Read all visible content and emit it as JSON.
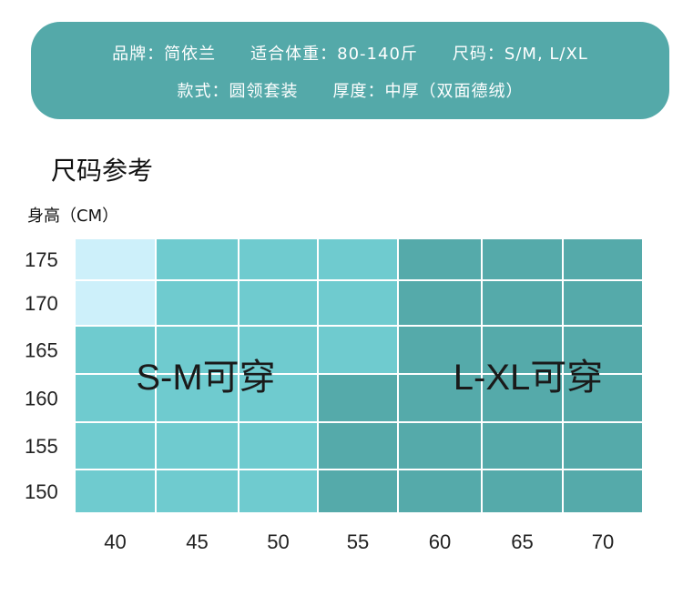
{
  "banner": {
    "brand": "品牌：简依兰",
    "fit_weight": "适合体重：80-140斤",
    "sizes": "尺码：S/M, L/XL",
    "style": "款式：圆领套装",
    "thickness": "厚度：中厚（双面德绒）"
  },
  "section_title": "尺码参考",
  "colors": {
    "banner": "#54a9a9",
    "light": "#cdf0fa",
    "sm": "#6fcbcf",
    "lxl": "#55aaaa",
    "gridline": "#ffffff"
  },
  "chart_data": {
    "type": "heatmap",
    "ylabel": "身高（CM）",
    "xlabel": "",
    "x": [
      "40",
      "45",
      "50",
      "55",
      "60",
      "65",
      "70"
    ],
    "y": [
      "175",
      "170",
      "165",
      "160",
      "155",
      "150"
    ],
    "zones": {
      "light": "",
      "sm": "S-M可穿",
      "lxl": "L-XL可穿"
    },
    "cells": [
      [
        "light",
        "sm",
        "sm",
        "sm",
        "lxl",
        "lxl",
        "lxl"
      ],
      [
        "light",
        "sm",
        "sm",
        "sm",
        "lxl",
        "lxl",
        "lxl"
      ],
      [
        "sm",
        "sm",
        "sm",
        "sm",
        "lxl",
        "lxl",
        "lxl"
      ],
      [
        "sm",
        "sm",
        "sm",
        "lxl",
        "lxl",
        "lxl",
        "lxl"
      ],
      [
        "sm",
        "sm",
        "sm",
        "lxl",
        "lxl",
        "lxl",
        "lxl"
      ],
      [
        "sm",
        "sm",
        "sm",
        "lxl",
        "lxl",
        "lxl",
        "lxl"
      ]
    ]
  }
}
